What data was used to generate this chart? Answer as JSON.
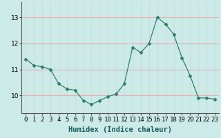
{
  "x": [
    0,
    1,
    2,
    3,
    4,
    5,
    6,
    7,
    8,
    9,
    10,
    11,
    12,
    13,
    14,
    15,
    16,
    17,
    18,
    19,
    20,
    21,
    22,
    23
  ],
  "y": [
    11.4,
    11.15,
    11.1,
    11.0,
    10.45,
    10.25,
    10.2,
    9.8,
    9.65,
    9.8,
    9.95,
    10.05,
    10.45,
    11.85,
    11.65,
    12.0,
    13.0,
    12.75,
    12.35,
    11.45,
    10.75,
    9.9,
    9.9,
    9.85
  ],
  "line_color": "#2e7d6e",
  "marker": "D",
  "marker_size": 2.5,
  "bg_color": "#cceae8",
  "grid_color_h": "#e8b0b0",
  "grid_color_v": "#c8dede",
  "xlabel": "Humidex (Indice chaleur)",
  "ylabel": "",
  "ylim": [
    9.3,
    13.6
  ],
  "yticks": [
    10,
    11,
    12,
    13
  ],
  "xlabel_fontsize": 7.5,
  "tick_fontsize": 6.5,
  "axis_color": "#555555"
}
